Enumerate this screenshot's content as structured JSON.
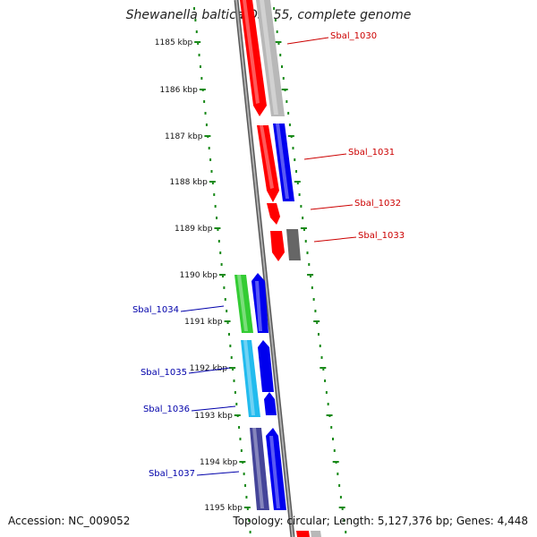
{
  "title": "Shewanella baltica OS155, complete genome",
  "footer": {
    "accession": "Accession: NC_009052",
    "topology": "Topology: circular; Length: 5,127,376 bp; Genes: 4,448"
  },
  "scale_labels": [
    "1185 kbp",
    "1186 kbp",
    "1187 kbp",
    "1188 kbp",
    "1189 kbp",
    "1190 kbp",
    "1191 kbp",
    "1192 kbp",
    "1193 kbp",
    "1194 kbp",
    "1195 kbp"
  ],
  "genes": [
    {
      "name": "Sbal_1030",
      "label_color": "#cc0000"
    },
    {
      "name": "Sbal_1031",
      "label_color": "#cc0000"
    },
    {
      "name": "Sbal_1032",
      "label_color": "#cc0000"
    },
    {
      "name": "Sbal_1033",
      "label_color": "#cc0000"
    },
    {
      "name": "Sbal_1034",
      "label_color": "#0000aa"
    },
    {
      "name": "Sbal_1035",
      "label_color": "#0000aa"
    },
    {
      "name": "Sbal_1036",
      "label_color": "#0000aa"
    },
    {
      "name": "Sbal_1037",
      "label_color": "#0000aa"
    }
  ],
  "colors": {
    "tick_green": "#1a8a1a",
    "backbone": "#7a7a7a",
    "red": "#ff0000",
    "gray": "#b8b8b8",
    "dark_gray": "#666666",
    "blue": "#0000ee",
    "green": "#33cc33",
    "cyan": "#22bbee",
    "indigo": "#444499"
  }
}
